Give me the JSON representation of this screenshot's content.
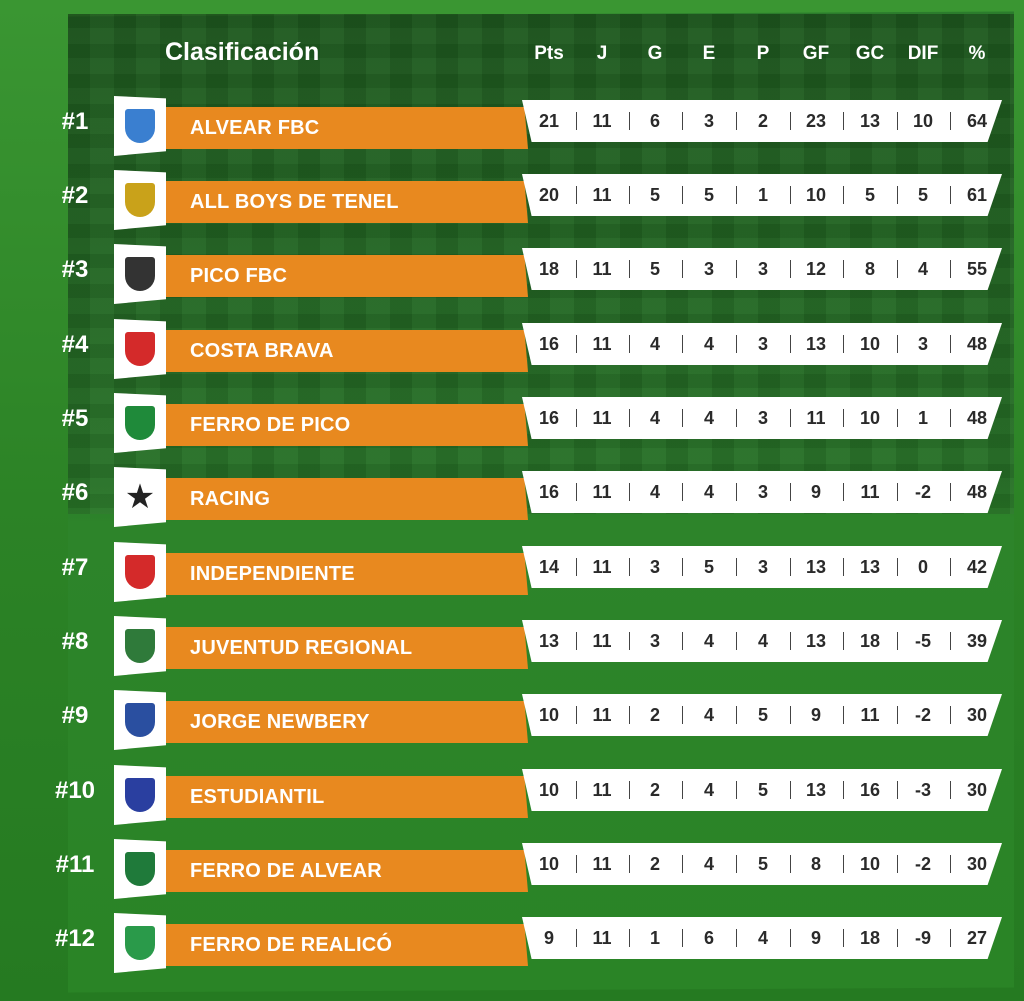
{
  "header": {
    "title": "Clasificación",
    "columns": [
      "Pts",
      "J",
      "G",
      "E",
      "P",
      "GF",
      "GC",
      "DIF",
      "%"
    ]
  },
  "colors": {
    "accent_orange": "#e8891f",
    "background_green": "#2f8a2a",
    "stats_bg": "#ffffff"
  },
  "rows": [
    {
      "rank": "#1",
      "team": "ALVEAR FBC",
      "crest_icon": "alvear-crest-icon",
      "crest_color": "#3a7fd0",
      "stats": [
        "21",
        "11",
        "6",
        "3",
        "2",
        "23",
        "13",
        "10",
        "64"
      ]
    },
    {
      "rank": "#2",
      "team": "ALL BOYS DE TENEL",
      "crest_icon": "all-boys-crest-icon",
      "crest_color": "#c9a21a",
      "stats": [
        "20",
        "11",
        "5",
        "5",
        "1",
        "10",
        "5",
        "5",
        "61"
      ]
    },
    {
      "rank": "#3",
      "team": "PICO FBC",
      "crest_icon": "pico-crest-icon",
      "crest_color": "#333333",
      "stats": [
        "18",
        "11",
        "5",
        "3",
        "3",
        "12",
        "8",
        "4",
        "55"
      ]
    },
    {
      "rank": "#4",
      "team": "COSTA BRAVA",
      "crest_icon": "costa-brava-crest-icon",
      "crest_color": "#d42a2a",
      "stats": [
        "16",
        "11",
        "4",
        "4",
        "3",
        "13",
        "10",
        "3",
        "48"
      ]
    },
    {
      "rank": "#5",
      "team": "FERRO DE PICO",
      "crest_icon": "ferro-pico-crest-icon",
      "crest_color": "#1f8a3a",
      "stats": [
        "16",
        "11",
        "4",
        "4",
        "3",
        "11",
        "10",
        "1",
        "48"
      ]
    },
    {
      "rank": "#6",
      "team": "RACING",
      "crest_icon": "racing-star-icon",
      "crest_color": "#222222",
      "stats": [
        "16",
        "11",
        "4",
        "4",
        "3",
        "9",
        "11",
        "-2",
        "48"
      ]
    },
    {
      "rank": "#7",
      "team": "INDEPENDIENTE",
      "crest_icon": "independiente-crest-icon",
      "crest_color": "#d42a2a",
      "stats": [
        "14",
        "11",
        "3",
        "5",
        "3",
        "13",
        "13",
        "0",
        "42"
      ]
    },
    {
      "rank": "#8",
      "team": "JUVENTUD REGIONAL",
      "crest_icon": "juventud-crest-icon",
      "crest_color": "#2f7a3a",
      "stats": [
        "13",
        "11",
        "3",
        "4",
        "4",
        "13",
        "18",
        "-5",
        "39"
      ]
    },
    {
      "rank": "#9",
      "team": "JORGE NEWBERY",
      "crest_icon": "jorge-newbery-crest-icon",
      "crest_color": "#2a4fa0",
      "stats": [
        "10",
        "11",
        "2",
        "4",
        "5",
        "9",
        "11",
        "-2",
        "30"
      ]
    },
    {
      "rank": "#10",
      "team": "ESTUDIANTIL",
      "crest_icon": "estudiantil-crest-icon",
      "crest_color": "#2a3fa0",
      "stats": [
        "10",
        "11",
        "2",
        "4",
        "5",
        "13",
        "16",
        "-3",
        "30"
      ]
    },
    {
      "rank": "#11",
      "team": "FERRO DE ALVEAR",
      "crest_icon": "ferro-alvear-crest-icon",
      "crest_color": "#1f7a3a",
      "stats": [
        "10",
        "11",
        "2",
        "4",
        "5",
        "8",
        "10",
        "-2",
        "30"
      ]
    },
    {
      "rank": "#12",
      "team": "FERRO DE REALICÓ",
      "crest_icon": "ferro-realico-crest-icon",
      "crest_color": "#2a9a4a",
      "stats": [
        "9",
        "11",
        "1",
        "6",
        "4",
        "9",
        "18",
        "-9",
        "27"
      ]
    }
  ]
}
